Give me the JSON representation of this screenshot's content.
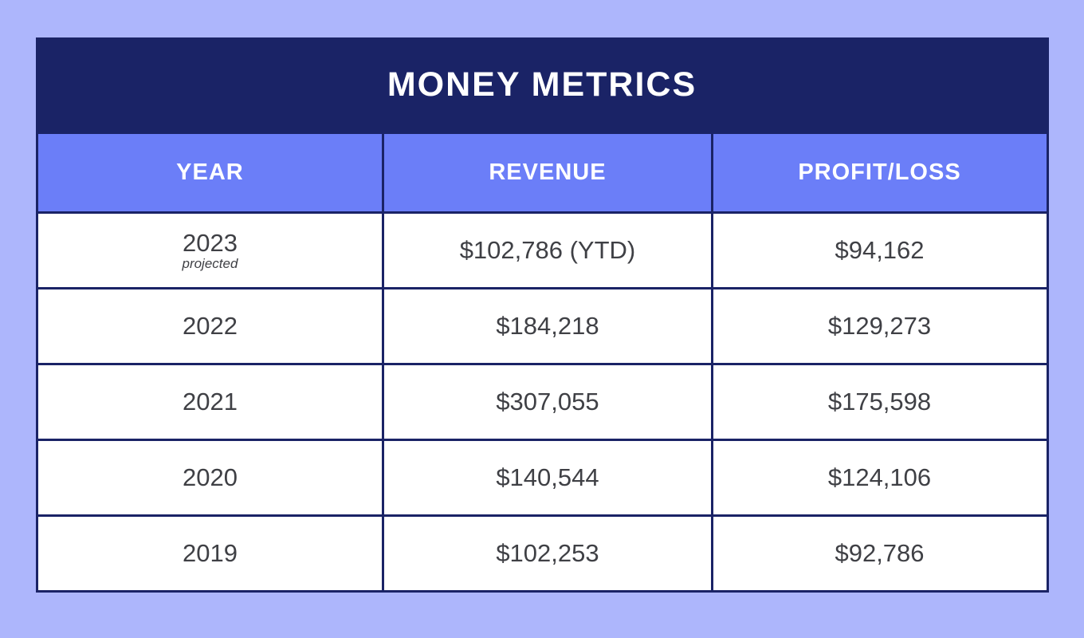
{
  "page": {
    "background_color": "#adb6fc"
  },
  "colors": {
    "title_bar": "#1a2366",
    "header_row": "#6b7ef8",
    "border": "#1a2366",
    "cell_background": "#ffffff",
    "cell_text": "#3f4045",
    "header_text": "#ffffff"
  },
  "title": "MONEY METRICS",
  "table": {
    "columns": [
      "YEAR",
      "REVENUE",
      "PROFIT/LOSS"
    ],
    "rows": [
      {
        "year": "2023",
        "note": "projected",
        "revenue": "$102,786 (YTD)",
        "profit": "$94,162"
      },
      {
        "year": "2022",
        "revenue": "$184,218",
        "profit": "$129,273"
      },
      {
        "year": "2021",
        "revenue": "$307,055",
        "profit": "$175,598"
      },
      {
        "year": "2020",
        "revenue": "$140,544",
        "profit": "$124,106"
      },
      {
        "year": "2019",
        "revenue": "$102,253",
        "profit": "$92,786"
      }
    ]
  },
  "chart_data": {
    "type": "table",
    "title": "MONEY METRICS",
    "columns": [
      "YEAR",
      "REVENUE",
      "PROFIT/LOSS"
    ],
    "rows": [
      [
        "2023 (projected)",
        "$102,786 (YTD)",
        "$94,162"
      ],
      [
        "2022",
        "$184,218",
        "$129,273"
      ],
      [
        "2021",
        "$307,055",
        "$175,598"
      ],
      [
        "2020",
        "$140,544",
        "$124,106"
      ],
      [
        "2019",
        "$102,253",
        "$92,786"
      ]
    ],
    "revenue_values": [
      102786,
      184218,
      307055,
      140544,
      102253
    ],
    "profit_loss_values": [
      94162,
      129273,
      175598,
      124106,
      92786
    ],
    "years": [
      2023,
      2022,
      2021,
      2020,
      2019
    ]
  }
}
